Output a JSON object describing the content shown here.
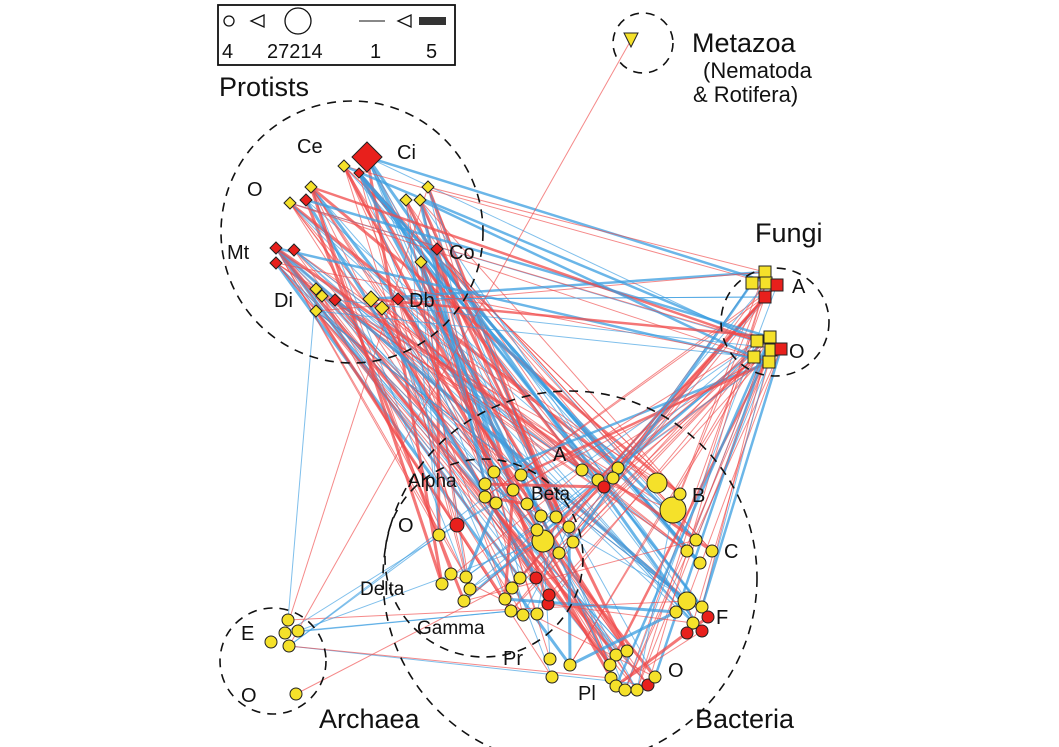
{
  "colors": {
    "positive_edge": "#f04a4a",
    "negative_edge": "#3a9de0",
    "node_yellow": "#f5e12a",
    "node_red": "#e8201c",
    "dashed_circle": "#111111"
  },
  "legend": {
    "shapes": [
      "circle-icon",
      "triangle-icon",
      "big-circle-icon",
      "thin-line-icon",
      "triangle-icon",
      "thick-line-icon"
    ],
    "values": [
      "4",
      "27214",
      "1",
      "5"
    ]
  },
  "groups": {
    "protists": {
      "title": "Protists",
      "subgroups": [
        "Ce",
        "Ci",
        "O",
        "Mt",
        "Co",
        "Di",
        "Db"
      ]
    },
    "metazoa": {
      "title": "Metazoa",
      "subtitle_line1": "(Nematoda",
      "subtitle_line2": "& Rotifera)"
    },
    "fungi": {
      "title": "Fungi",
      "subgroups": [
        "A",
        "O"
      ]
    },
    "bacteria": {
      "title": "Bacteria",
      "subgroups": [
        "A",
        "Alpha",
        "Beta",
        "B",
        "O",
        "C",
        "Delta",
        "Gamma",
        "F",
        "Pr",
        "Pl",
        "O"
      ]
    },
    "archaea": {
      "title": "Archaea",
      "subgroups": [
        "E",
        "O"
      ]
    }
  }
}
